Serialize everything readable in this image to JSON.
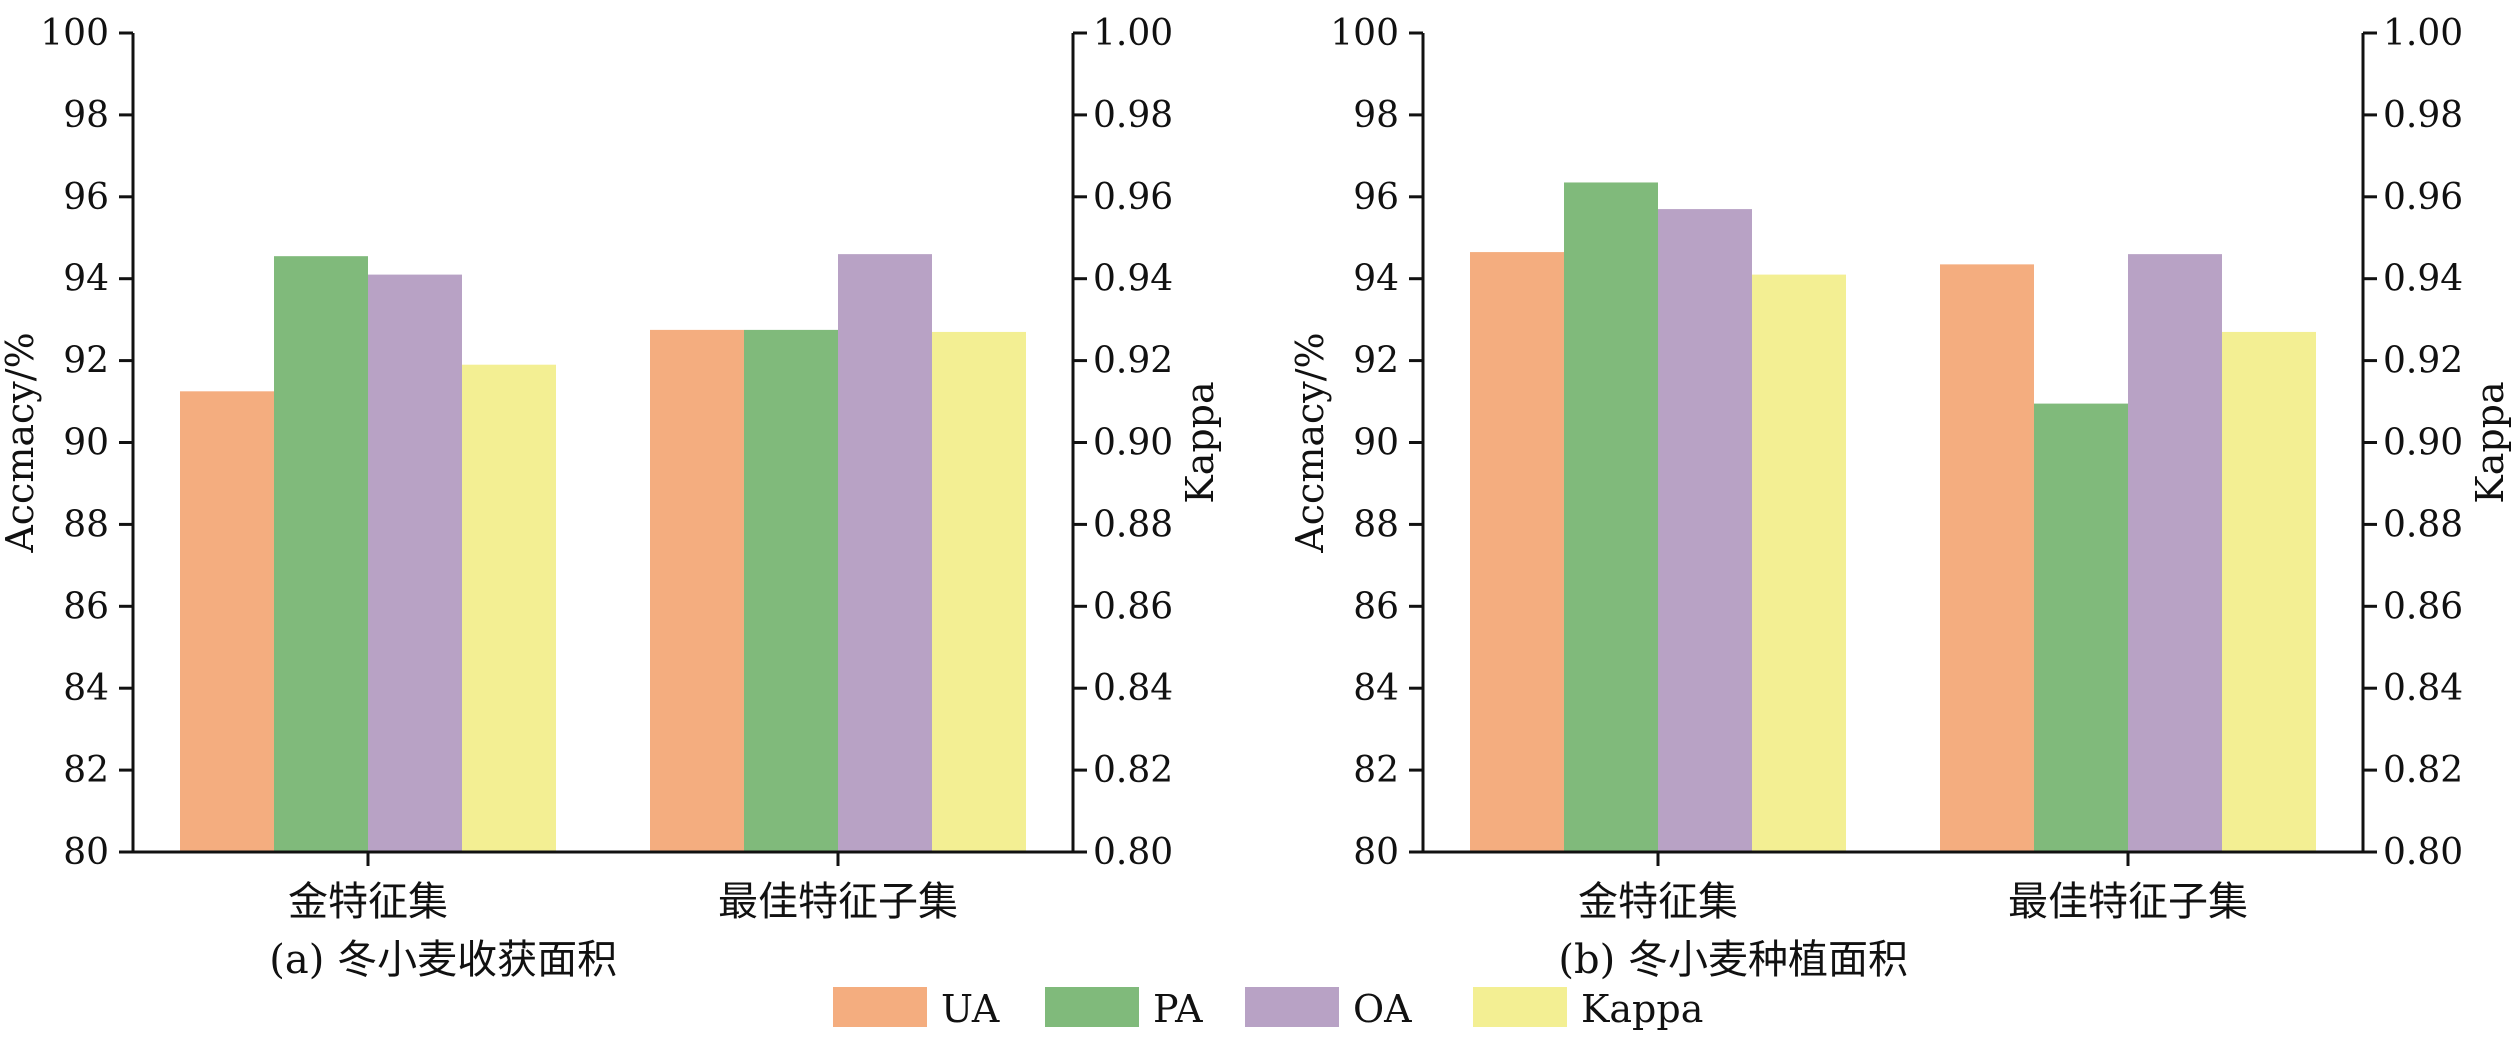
{
  "colors": {
    "UA": "#f4ad7f",
    "PA": "#80ba7b",
    "OA": "#b8a2c5",
    "Kappa": "#f3ef93",
    "axis": "#111111"
  },
  "legend": {
    "items": [
      {
        "key": "UA",
        "label": "UA"
      },
      {
        "key": "PA",
        "label": "PA"
      },
      {
        "key": "OA",
        "label": "OA"
      },
      {
        "key": "Kappa",
        "label": "Kappa"
      }
    ]
  },
  "chart_data": [
    {
      "type": "bar",
      "title": "(a) 冬小麦收获面积",
      "categories": [
        "金特征集",
        "最佳特征子集"
      ],
      "series": [
        {
          "name": "UA",
          "axis": "left",
          "values": [
            91.25,
            92.75
          ]
        },
        {
          "name": "PA",
          "axis": "left",
          "values": [
            94.55,
            92.75
          ]
        },
        {
          "name": "OA",
          "axis": "left",
          "values": [
            94.1,
            94.6
          ]
        },
        {
          "name": "Kappa",
          "axis": "right",
          "values": [
            0.919,
            0.927
          ]
        }
      ],
      "ylabel": "Accmacy/%",
      "ylim": [
        80,
        100
      ],
      "yticks": [
        "80",
        "82",
        "84",
        "86",
        "88",
        "90",
        "92",
        "94",
        "96",
        "98",
        "100"
      ],
      "y2label": "Kappa",
      "y2lim": [
        0.8,
        1.0
      ],
      "y2ticks": [
        "0.80",
        "0.82",
        "0.84",
        "0.86",
        "0.88",
        "0.90",
        "0.92",
        "0.94",
        "0.96",
        "0.98",
        "1.00"
      ],
      "legend_position": "bottom-center",
      "grid": false
    },
    {
      "type": "bar",
      "title": "(b) 冬小麦种植面积",
      "categories": [
        "金特征集",
        "最佳特征子集"
      ],
      "series": [
        {
          "name": "UA",
          "axis": "left",
          "values": [
            94.65,
            94.35
          ]
        },
        {
          "name": "PA",
          "axis": "left",
          "values": [
            96.35,
            90.95
          ]
        },
        {
          "name": "OA",
          "axis": "left",
          "values": [
            95.7,
            94.6
          ]
        },
        {
          "name": "Kappa",
          "axis": "right",
          "values": [
            0.941,
            0.927
          ]
        }
      ],
      "ylabel": "Accmacy/%",
      "ylim": [
        80,
        100
      ],
      "yticks": [
        "80",
        "82",
        "84",
        "86",
        "88",
        "90",
        "92",
        "94",
        "96",
        "98",
        "100"
      ],
      "y2label": "Kappa",
      "y2lim": [
        0.8,
        1.0
      ],
      "y2ticks": [
        "0.80",
        "0.82",
        "0.84",
        "0.86",
        "0.88",
        "0.90",
        "0.92",
        "0.94",
        "0.96",
        "0.98",
        "1.00"
      ],
      "legend_position": "bottom-center",
      "grid": false
    }
  ]
}
